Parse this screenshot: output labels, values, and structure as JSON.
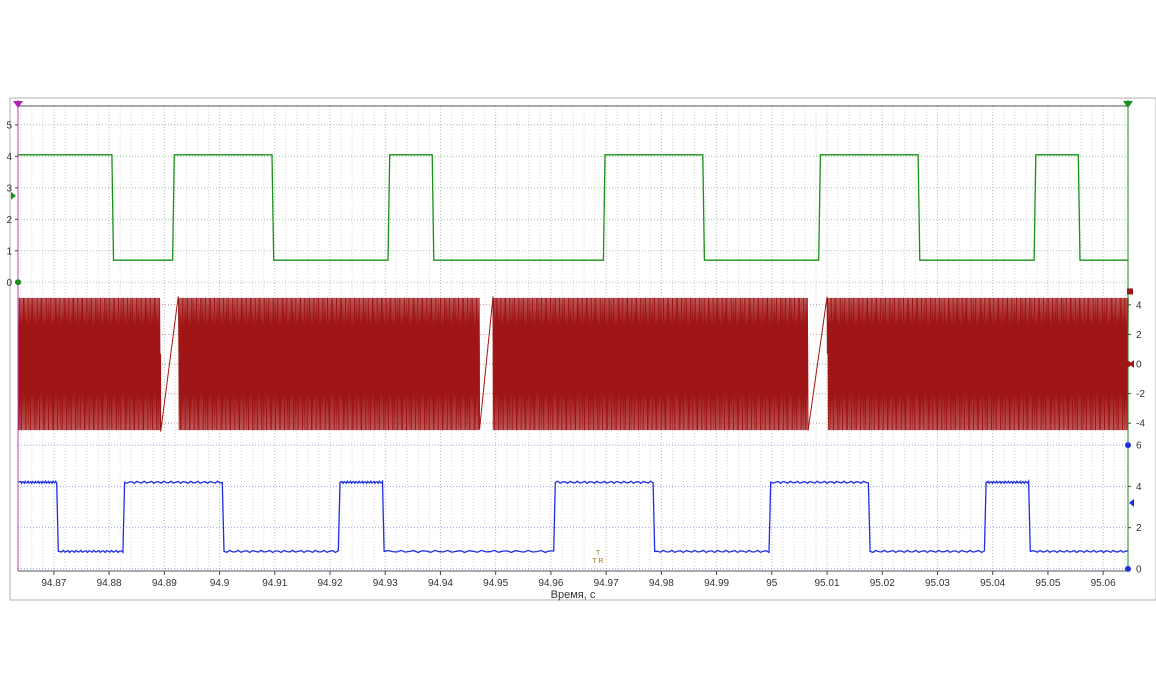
{
  "chart_data": {
    "type": "line",
    "xlabel": "Время, с",
    "x_ticks": [
      94.87,
      94.88,
      94.89,
      94.9,
      94.91,
      94.92,
      94.93,
      94.94,
      94.95,
      94.96,
      94.97,
      94.98,
      94.99,
      95,
      95.01,
      95.02,
      95.03,
      95.04,
      95.05,
      95.06
    ],
    "x_tick_labels": [
      "94.87",
      "94.88",
      "94.89",
      "94.9",
      "94.91",
      "94.92",
      "94.93",
      "94.94",
      "94.95",
      "94.96",
      "94.97",
      "94.98",
      "94.99",
      "95",
      "95.01",
      "95.02",
      "95.03",
      "95.04",
      "95.05",
      "95.06"
    ],
    "xlim": [
      94.8635,
      95.0645
    ],
    "grid": true,
    "cursor_marker": "T\nT R",
    "series": [
      {
        "id": "ch1",
        "color": "#1a8f1a",
        "kind": "square",
        "axis": "left",
        "ylim": [
          -0.15,
          5.6
        ],
        "yticks": [
          0,
          1,
          2,
          3,
          4,
          5
        ],
        "high": 4.05,
        "low": 0.7,
        "edges": [
          [
            94.8635,
            1
          ],
          [
            94.8805,
            0
          ],
          [
            94.8915,
            1
          ],
          [
            94.9095,
            0
          ],
          [
            94.9305,
            1
          ],
          [
            94.9385,
            0
          ],
          [
            94.9695,
            1
          ],
          [
            94.9875,
            0
          ],
          [
            95.0085,
            1
          ],
          [
            95.0265,
            0
          ],
          [
            95.0475,
            1
          ],
          [
            95.0555,
            0
          ]
        ]
      },
      {
        "id": "ch2",
        "color": "#a01515",
        "kind": "oscillation",
        "axis": "right",
        "ylim": [
          -5.2,
          5.2
        ],
        "yticks": [
          -4,
          -2,
          0,
          2,
          4
        ],
        "amplitude": 4.6,
        "frequency_hz": 4300,
        "sweeps": [
          [
            94.8893,
            94.8925
          ],
          [
            94.947,
            94.9495
          ],
          [
            95.0065,
            95.01
          ]
        ]
      },
      {
        "id": "ch3",
        "color": "#1f2fe0",
        "kind": "square",
        "axis": "right",
        "ylim": [
          -0.1,
          6.2
        ],
        "yticks": [
          0,
          2,
          4,
          6
        ],
        "high": 4.2,
        "low": 0.85,
        "edges": [
          [
            94.8635,
            1
          ],
          [
            94.8705,
            0
          ],
          [
            94.8825,
            1
          ],
          [
            94.9005,
            0
          ],
          [
            94.9215,
            1
          ],
          [
            94.9295,
            0
          ],
          [
            94.9605,
            1
          ],
          [
            94.9785,
            0
          ],
          [
            94.9995,
            1
          ],
          [
            95.0175,
            0
          ],
          [
            95.0385,
            1
          ],
          [
            95.0465,
            0
          ]
        ]
      }
    ]
  }
}
